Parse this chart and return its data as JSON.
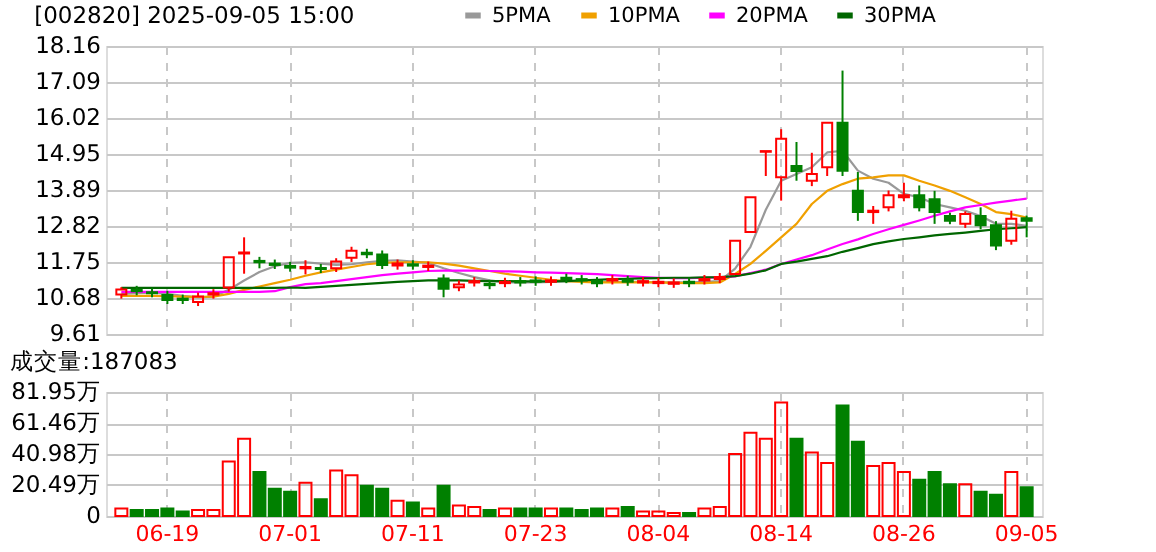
{
  "chart_data": [
    {
      "type": "candlestick",
      "title": "[002820] 2025-09-05 15:00",
      "categories": [
        null,
        null,
        null,
        null,
        null,
        null,
        null,
        null,
        null,
        null,
        null,
        null,
        null,
        null,
        null,
        null,
        null,
        null,
        null,
        null,
        null,
        null,
        null,
        null,
        null,
        null,
        null,
        null,
        null,
        null,
        null,
        null,
        null,
        null,
        null,
        null,
        null,
        null,
        null,
        null,
        null,
        null,
        null,
        null,
        null,
        null,
        null,
        null,
        null,
        null,
        null,
        null,
        null,
        null,
        null,
        null,
        null,
        null,
        null,
        null
      ],
      "ohlc": [
        [
          10.78,
          11.0,
          10.66,
          10.93
        ],
        [
          10.92,
          11.04,
          10.76,
          10.88
        ],
        [
          10.85,
          10.97,
          10.7,
          10.82
        ],
        [
          10.77,
          10.89,
          10.5,
          10.62
        ],
        [
          10.66,
          10.78,
          10.5,
          10.62
        ],
        [
          10.56,
          10.84,
          10.44,
          10.72
        ],
        [
          10.78,
          10.94,
          10.66,
          10.82
        ],
        [
          10.99,
          11.89,
          10.87,
          11.89
        ],
        [
          12.0,
          12.48,
          11.4,
          12.03
        ],
        [
          11.78,
          11.9,
          11.56,
          11.74
        ],
        [
          11.7,
          11.82,
          11.54,
          11.66
        ],
        [
          11.63,
          11.75,
          11.46,
          11.58
        ],
        [
          11.56,
          11.8,
          11.38,
          11.6
        ],
        [
          11.57,
          11.69,
          11.42,
          11.54
        ],
        [
          11.56,
          11.86,
          11.45,
          11.76
        ],
        [
          11.87,
          12.2,
          11.75,
          12.08
        ],
        [
          12.02,
          12.14,
          11.86,
          11.98
        ],
        [
          11.97,
          12.09,
          11.54,
          11.66
        ],
        [
          11.64,
          11.82,
          11.52,
          11.7
        ],
        [
          11.68,
          11.8,
          11.52,
          11.64
        ],
        [
          11.6,
          11.76,
          11.48,
          11.64
        ],
        [
          11.26,
          11.38,
          10.7,
          10.95
        ],
        [
          11.0,
          11.2,
          10.88,
          11.08
        ],
        [
          11.14,
          11.3,
          11.02,
          11.18
        ],
        [
          11.1,
          11.22,
          10.94,
          11.06
        ],
        [
          11.12,
          11.28,
          11.0,
          11.16
        ],
        [
          11.18,
          11.3,
          11.02,
          11.14
        ],
        [
          11.2,
          11.32,
          11.04,
          11.16
        ],
        [
          11.16,
          11.32,
          11.04,
          11.2
        ],
        [
          11.28,
          11.4,
          11.12,
          11.24
        ],
        [
          11.24,
          11.36,
          11.08,
          11.2
        ],
        [
          11.18,
          11.3,
          11.0,
          11.12
        ],
        [
          11.2,
          11.36,
          11.08,
          11.24
        ],
        [
          11.22,
          11.34,
          11.04,
          11.16
        ],
        [
          11.14,
          11.3,
          11.02,
          11.18
        ],
        [
          11.12,
          11.28,
          11.0,
          11.16
        ],
        [
          11.1,
          11.26,
          10.98,
          11.14
        ],
        [
          11.16,
          11.28,
          11.0,
          11.12
        ],
        [
          11.2,
          11.36,
          11.08,
          11.24
        ],
        [
          11.24,
          11.42,
          11.12,
          11.3
        ],
        [
          11.39,
          12.38,
          11.39,
          12.38
        ],
        [
          12.64,
          13.67,
          12.64,
          13.67
        ],
        [
          15.02,
          15.04,
          14.3,
          15.04
        ],
        [
          14.26,
          15.69,
          13.57,
          15.41
        ],
        [
          14.6,
          15.31,
          14.16,
          14.45
        ],
        [
          14.16,
          14.99,
          14.0,
          14.36
        ],
        [
          14.56,
          15.88,
          14.3,
          15.88
        ],
        [
          15.88,
          17.43,
          14.3,
          14.46
        ],
        [
          13.86,
          14.42,
          12.97,
          13.23
        ],
        [
          13.23,
          13.41,
          12.88,
          13.27
        ],
        [
          13.37,
          13.87,
          13.25,
          13.73
        ],
        [
          13.67,
          14.1,
          13.55,
          13.73
        ],
        [
          13.73,
          14.02,
          13.25,
          13.37
        ],
        [
          13.61,
          13.86,
          12.88,
          13.23
        ],
        [
          13.11,
          13.21,
          12.87,
          12.97
        ],
        [
          12.88,
          13.25,
          12.76,
          13.17
        ],
        [
          13.11,
          13.37,
          12.72,
          12.84
        ],
        [
          12.84,
          12.96,
          12.1,
          12.24
        ],
        [
          12.38,
          13.27,
          12.26,
          13.03
        ],
        [
          13.05,
          13.13,
          12.48,
          12.97
        ]
      ],
      "colors": [
        "#ff0000",
        "#008000",
        "#008000",
        "#008000",
        "#008000",
        "#ff0000",
        "#ff0000",
        "#ff0000",
        "#ff0000",
        "#008000",
        "#008000",
        "#008000",
        "#ff0000",
        "#008000",
        "#ff0000",
        "#ff0000",
        "#008000",
        "#008000",
        "#ff0000",
        "#008000",
        "#ff0000",
        "#008000",
        "#ff0000",
        "#ff0000",
        "#008000",
        "#ff0000",
        "#008000",
        "#008000",
        "#ff0000",
        "#008000",
        "#008000",
        "#008000",
        "#ff0000",
        "#008000",
        "#ff0000",
        "#ff0000",
        "#ff0000",
        "#008000",
        "#ff0000",
        "#ff0000",
        "#ff0000",
        "#ff0000",
        "#ff0000",
        "#ff0000",
        "#008000",
        "#ff0000",
        "#ff0000",
        "#008000",
        "#008000",
        "#ff0000",
        "#ff0000",
        "#ff0000",
        "#008000",
        "#008000",
        "#008000",
        "#ff0000",
        "#008000",
        "#008000",
        "#ff0000",
        "#008000"
      ],
      "series": [
        {
          "name": "5PMA",
          "type": "line",
          "color": "#999999",
          "values": [
            10.8,
            10.82,
            10.84,
            10.8,
            10.74,
            10.7,
            10.72,
            10.92,
            11.2,
            11.45,
            11.62,
            11.72,
            11.74,
            11.7,
            11.66,
            11.68,
            11.74,
            11.78,
            11.8,
            11.76,
            11.72,
            11.56,
            11.42,
            11.3,
            11.2,
            11.14,
            11.14,
            11.14,
            11.16,
            11.18,
            11.18,
            11.16,
            11.16,
            11.16,
            11.16,
            11.14,
            11.14,
            11.14,
            11.16,
            11.18,
            11.55,
            12.2,
            13.3,
            14.16,
            14.36,
            14.56,
            15.0,
            15.05,
            14.46,
            14.22,
            14.1,
            13.77,
            13.67,
            13.47,
            13.37,
            13.27,
            13.11,
            12.88,
            12.88,
            12.82
          ]
        },
        {
          "name": "10PMA",
          "type": "line",
          "color": "#f0a000",
          "values": [
            10.74,
            10.74,
            10.74,
            10.73,
            10.72,
            10.71,
            10.72,
            10.8,
            10.92,
            11.02,
            11.12,
            11.22,
            11.34,
            11.44,
            11.52,
            11.6,
            11.68,
            11.72,
            11.74,
            11.74,
            11.74,
            11.7,
            11.64,
            11.56,
            11.48,
            11.4,
            11.34,
            11.28,
            11.22,
            11.18,
            11.16,
            11.14,
            11.14,
            11.14,
            11.14,
            11.14,
            11.13,
            11.12,
            11.12,
            11.14,
            11.39,
            11.69,
            12.08,
            12.48,
            12.88,
            13.47,
            13.86,
            14.06,
            14.22,
            14.26,
            14.32,
            14.32,
            14.16,
            14.02,
            13.86,
            13.67,
            13.47,
            13.23,
            13.17,
            13.07
          ]
        },
        {
          "name": "20PMA",
          "type": "line",
          "color": "#ff00ff",
          "values": [
            10.86,
            10.86,
            10.86,
            10.86,
            10.86,
            10.86,
            10.86,
            10.86,
            10.86,
            10.86,
            10.88,
            11.0,
            11.09,
            11.12,
            11.18,
            11.24,
            11.3,
            11.36,
            11.4,
            11.44,
            11.48,
            11.49,
            11.49,
            11.49,
            11.48,
            11.47,
            11.46,
            11.44,
            11.43,
            11.42,
            11.4,
            11.39,
            11.36,
            11.33,
            11.3,
            11.28,
            11.27,
            11.27,
            11.28,
            11.29,
            11.32,
            11.42,
            11.52,
            11.69,
            11.82,
            11.95,
            12.12,
            12.28,
            12.42,
            12.58,
            12.72,
            12.85,
            12.98,
            13.12,
            13.25,
            13.37,
            13.44,
            13.51,
            13.57,
            13.63
          ]
        },
        {
          "name": "30PMA",
          "type": "line",
          "color": "#006600",
          "values": [
            10.98,
            10.98,
            10.98,
            10.98,
            10.98,
            10.98,
            10.98,
            10.98,
            10.98,
            10.98,
            10.98,
            10.99,
            10.98,
            11.01,
            11.04,
            11.07,
            11.1,
            11.13,
            11.16,
            11.18,
            11.2,
            11.2,
            11.2,
            11.19,
            11.18,
            11.18,
            11.17,
            11.17,
            11.17,
            11.18,
            11.2,
            11.22,
            11.24,
            11.25,
            11.26,
            11.27,
            11.28,
            11.28,
            11.29,
            11.3,
            11.33,
            11.4,
            11.5,
            11.69,
            11.76,
            11.84,
            11.92,
            12.05,
            12.16,
            12.28,
            12.36,
            12.43,
            12.48,
            12.54,
            12.58,
            12.62,
            12.67,
            12.72,
            12.75,
            12.78
          ]
        }
      ],
      "ylim": [
        9.61,
        18.16
      ],
      "yticks": [
        9.61,
        10.68,
        11.75,
        12.82,
        13.89,
        14.95,
        16.02,
        17.09,
        18.16
      ],
      "grid": true,
      "legend": "top right",
      "tick_labels": "y"
    },
    {
      "type": "bar",
      "title": "成交量:187083",
      "categories": [
        null,
        null,
        null,
        "06-19",
        null,
        null,
        null,
        null,
        null,
        null,
        null,
        "07-01",
        null,
        null,
        null,
        null,
        null,
        null,
        null,
        "07-11",
        null,
        null,
        null,
        null,
        null,
        null,
        null,
        "07-23",
        null,
        null,
        null,
        null,
        null,
        null,
        null,
        "08-04",
        null,
        null,
        null,
        null,
        null,
        null,
        null,
        "08-14",
        null,
        null,
        null,
        null,
        null,
        null,
        null,
        "08-26",
        null,
        null,
        null,
        null,
        null,
        null,
        null,
        "09-05"
      ],
      "values": [
        5,
        4,
        4,
        5,
        3,
        4,
        4,
        36,
        51,
        29,
        18,
        16,
        22,
        11,
        30,
        27,
        20,
        18,
        10,
        9,
        5,
        20,
        7,
        6,
        4,
        5,
        5,
        5,
        5,
        5,
        4,
        5,
        5,
        6,
        3,
        3,
        2,
        2,
        5,
        6,
        41,
        55,
        51,
        75,
        51,
        42,
        35,
        73,
        49,
        33,
        35,
        29,
        24,
        29,
        21,
        21,
        16,
        14,
        29,
        19
      ],
      "colors": [
        "#ff0000",
        "#008000",
        "#008000",
        "#008000",
        "#008000",
        "#ff0000",
        "#ff0000",
        "#ff0000",
        "#ff0000",
        "#008000",
        "#008000",
        "#008000",
        "#ff0000",
        "#008000",
        "#ff0000",
        "#ff0000",
        "#008000",
        "#008000",
        "#ff0000",
        "#008000",
        "#ff0000",
        "#008000",
        "#ff0000",
        "#ff0000",
        "#008000",
        "#ff0000",
        "#008000",
        "#008000",
        "#ff0000",
        "#008000",
        "#008000",
        "#008000",
        "#ff0000",
        "#008000",
        "#ff0000",
        "#ff0000",
        "#ff0000",
        "#008000",
        "#ff0000",
        "#ff0000",
        "#ff0000",
        "#ff0000",
        "#ff0000",
        "#ff0000",
        "#008000",
        "#ff0000",
        "#ff0000",
        "#008000",
        "#008000",
        "#ff0000",
        "#ff0000",
        "#ff0000",
        "#008000",
        "#008000",
        "#008000",
        "#ff0000",
        "#008000",
        "#008000",
        "#ff0000",
        "#008000"
      ],
      "ylim": [
        0,
        81.95
      ],
      "yticks": [
        0,
        {
          "value": 20.49,
          "label": "20.49万"
        },
        {
          "value": 40.98,
          "label": "40.98万"
        },
        {
          "value": 61.46,
          "label": "61.46万"
        },
        {
          "value": 81.95,
          "label": "81.95万"
        }
      ],
      "grid": true
    }
  ]
}
